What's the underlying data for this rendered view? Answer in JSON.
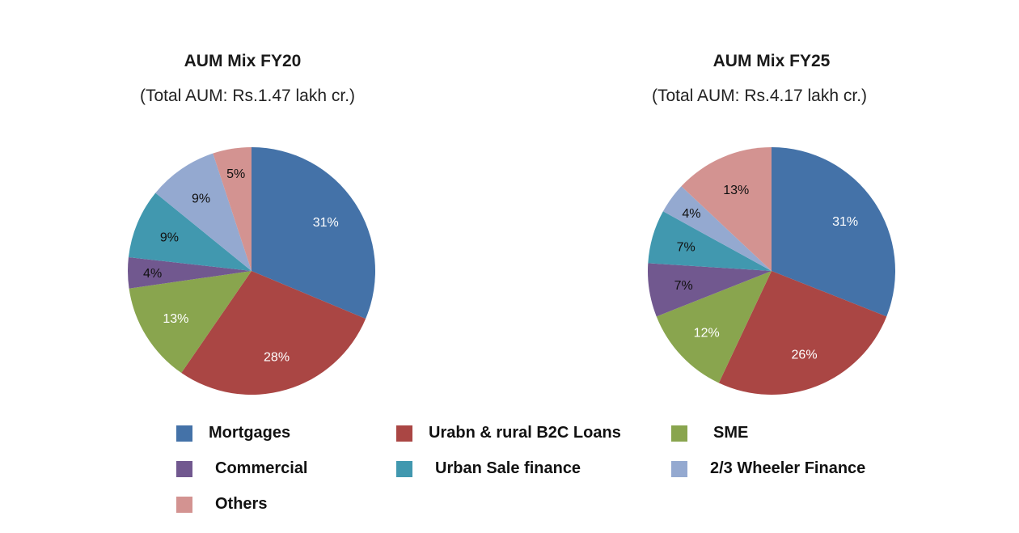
{
  "chart_data": [
    {
      "type": "pie",
      "title": "AUM Mix FY20",
      "subtitle": "(Total AUM: Rs.1.47 lakh cr.)",
      "categories": [
        "Mortgages",
        "Urabn & rural B2C Loans",
        "SME",
        "Commercial",
        "Urban Sale finance",
        "2/3 Wheeler Finance",
        "Others"
      ],
      "values": [
        31,
        28,
        13,
        4,
        9,
        9,
        5
      ],
      "labels": [
        "31%",
        "28%",
        "13%",
        "4%",
        "9%",
        "9%",
        "5%"
      ]
    },
    {
      "type": "pie",
      "title": "AUM Mix FY25",
      "subtitle": "(Total AUM: Rs.4.17 lakh cr.)",
      "categories": [
        "Mortgages",
        "Urabn & rural B2C Loans",
        "SME",
        "Commercial",
        "Urban Sale finance",
        "2/3 Wheeler Finance",
        "Others"
      ],
      "values": [
        31,
        26,
        12,
        7,
        7,
        4,
        13
      ],
      "labels": [
        "31%",
        "26%",
        "12%",
        "7%",
        "7%",
        "4%",
        "13%"
      ]
    }
  ],
  "legend": [
    {
      "label": "Mortgages",
      "color": "#4472a8"
    },
    {
      "label": "Urabn & rural B2C Loans",
      "color": "#aa4644"
    },
    {
      "label": "SME",
      "color": "#89a54e"
    },
    {
      "label": "Commercial",
      "color": "#71588f"
    },
    {
      "label": "Urban Sale finance",
      "color": "#4198af"
    },
    {
      "label": "2/3 Wheeler Finance",
      "color": "#94a9d0"
    },
    {
      "label": "Others",
      "color": "#d39391"
    }
  ],
  "label_colors": [
    "#ffffff",
    "#ffffff",
    "#ffffff",
    "#111111",
    "#111111",
    "#111111",
    "#111111"
  ]
}
